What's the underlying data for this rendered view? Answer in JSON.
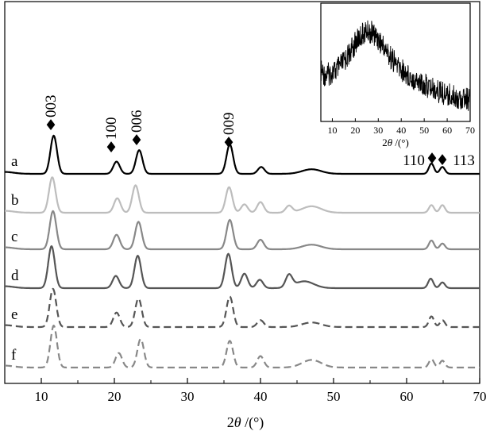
{
  "chart_data": {
    "type": "line",
    "xlabel": "2θ /(°)",
    "xlim": [
      5,
      70
    ],
    "xticks": [
      "10",
      "20",
      "30",
      "40",
      "50",
      "60",
      "70"
    ],
    "series": [
      {
        "name": "a",
        "color": "#000000",
        "dashed": false,
        "peaks": [
          [
            11.7,
            1.0
          ],
          [
            20.3,
            0.32
          ],
          [
            23.4,
            0.62
          ],
          [
            35.8,
            0.77
          ],
          [
            40.1,
            0.18
          ],
          [
            47.0,
            0.12
          ],
          [
            63.4,
            0.27
          ],
          [
            64.9,
            0.18
          ]
        ]
      },
      {
        "name": "b",
        "color": "#bdbdbd",
        "dashed": false,
        "peaks": [
          [
            11.5,
            0.93
          ],
          [
            20.4,
            0.38
          ],
          [
            22.9,
            0.72
          ],
          [
            35.7,
            0.67
          ],
          [
            37.8,
            0.22
          ],
          [
            40.0,
            0.28
          ],
          [
            43.9,
            0.18
          ],
          [
            47.0,
            0.17
          ],
          [
            63.4,
            0.2
          ],
          [
            64.9,
            0.2
          ]
        ]
      },
      {
        "name": "c",
        "color": "#888888",
        "dashed": false,
        "peaks": [
          [
            11.6,
            1.0
          ],
          [
            20.3,
            0.38
          ],
          [
            23.3,
            0.72
          ],
          [
            35.8,
            0.77
          ],
          [
            40.0,
            0.25
          ],
          [
            47.0,
            0.12
          ],
          [
            63.4,
            0.23
          ],
          [
            64.9,
            0.15
          ]
        ]
      },
      {
        "name": "d",
        "color": "#555555",
        "dashed": false,
        "peaks": [
          [
            11.4,
            1.1
          ],
          [
            20.2,
            0.32
          ],
          [
            23.2,
            0.85
          ],
          [
            35.6,
            0.9
          ],
          [
            37.8,
            0.38
          ],
          [
            39.9,
            0.22
          ],
          [
            43.9,
            0.32
          ],
          [
            46.0,
            0.18
          ],
          [
            63.3,
            0.25
          ],
          [
            64.9,
            0.15
          ]
        ]
      },
      {
        "name": "e",
        "color": "#555555",
        "dashed": true,
        "peaks": [
          [
            11.6,
            1.0
          ],
          [
            20.3,
            0.38
          ],
          [
            23.3,
            0.75
          ],
          [
            35.8,
            0.8
          ],
          [
            40.0,
            0.18
          ],
          [
            47.0,
            0.12
          ],
          [
            63.4,
            0.28
          ],
          [
            64.9,
            0.18
          ]
        ]
      },
      {
        "name": "f",
        "color": "#888888",
        "dashed": true,
        "peaks": [
          [
            11.7,
            1.1
          ],
          [
            20.6,
            0.38
          ],
          [
            23.6,
            0.75
          ],
          [
            35.8,
            0.7
          ],
          [
            40.0,
            0.3
          ],
          [
            47.0,
            0.2
          ],
          [
            63.4,
            0.22
          ],
          [
            64.9,
            0.18
          ]
        ]
      }
    ],
    "annotations": [
      {
        "label": "003",
        "x": 11.7
      },
      {
        "label": "100",
        "x": 20.3
      },
      {
        "label": "006",
        "x": 23.4
      },
      {
        "label": "009",
        "x": 35.8
      },
      {
        "label": "110",
        "x": 63.4
      },
      {
        "label": "113",
        "x": 64.9
      }
    ],
    "marker_symbol": "♦",
    "inset": {
      "xlabel": "2θ /(°)",
      "xlim": [
        5,
        70
      ],
      "xticks": [
        "10",
        "20",
        "30",
        "40",
        "50",
        "60",
        "70"
      ]
    }
  }
}
